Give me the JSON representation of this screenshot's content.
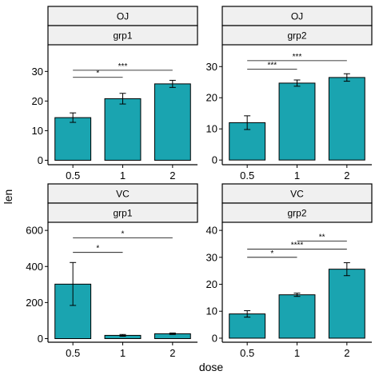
{
  "figure": {
    "x_title": "dose",
    "y_title": "len"
  },
  "style": {
    "bar_fill": "#1aa4b0",
    "strip_fill": "#f0f0f0",
    "stroke": "#000000"
  },
  "chart_data": [
    {
      "type": "bar",
      "strips": [
        "OJ",
        "grp1"
      ],
      "categories": [
        "0.5",
        "1",
        "2"
      ],
      "values": [
        14.4,
        20.8,
        25.8
      ],
      "error": [
        [
          12.8,
          16.0
        ],
        [
          19.0,
          22.6
        ],
        [
          24.6,
          27.0
        ]
      ],
      "ylim": [
        -1.5,
        39
      ],
      "yticks": [
        0,
        10,
        20,
        30
      ],
      "comparisons": [
        {
          "from": "0.5",
          "to": "1",
          "label": "*",
          "y": 28
        },
        {
          "from": "0.5",
          "to": "2",
          "label": "***",
          "y": 30.4
        }
      ]
    },
    {
      "type": "bar",
      "strips": [
        "OJ",
        "grp2"
      ],
      "categories": [
        "0.5",
        "1",
        "2"
      ],
      "values": [
        12.0,
        24.7,
        26.5
      ],
      "error": [
        [
          9.8,
          14.2
        ],
        [
          23.7,
          25.7
        ],
        [
          25.3,
          27.7
        ]
      ],
      "ylim": [
        -1.5,
        37
      ],
      "yticks": [
        0,
        10,
        20,
        30
      ],
      "comparisons": [
        {
          "from": "0.5",
          "to": "1",
          "label": "***",
          "y": 29.2
        },
        {
          "from": "0.5",
          "to": "2",
          "label": "***",
          "y": 31.9
        }
      ]
    },
    {
      "type": "bar",
      "strips": [
        "VC",
        "grp1"
      ],
      "categories": [
        "0.5",
        "1",
        "2"
      ],
      "values": [
        302,
        18,
        27
      ],
      "error": [
        [
          184,
          422
        ],
        [
          13,
          23
        ],
        [
          23,
          31
        ]
      ],
      "ylim": [
        -20,
        645
      ],
      "yticks": [
        0,
        200,
        400,
        600
      ],
      "comparisons": [
        {
          "from": "0.5",
          "to": "1",
          "label": "*",
          "y": 478
        },
        {
          "from": "0.5",
          "to": "2",
          "label": "*",
          "y": 558
        }
      ]
    },
    {
      "type": "bar",
      "strips": [
        "VC",
        "grp2"
      ],
      "categories": [
        "0.5",
        "1",
        "2"
      ],
      "values": [
        9.0,
        16.1,
        25.6
      ],
      "error": [
        [
          7.8,
          10.2
        ],
        [
          15.5,
          16.7
        ],
        [
          23.2,
          28.0
        ]
      ],
      "ylim": [
        -1.5,
        43
      ],
      "yticks": [
        0,
        10,
        20,
        30,
        40
      ],
      "comparisons": [
        {
          "from": "0.5",
          "to": "1",
          "label": "*",
          "y": 30
        },
        {
          "from": "0.5",
          "to": "2",
          "label": "****",
          "y": 33
        },
        {
          "from": "1",
          "to": "2",
          "label": "**",
          "y": 36
        }
      ]
    }
  ]
}
